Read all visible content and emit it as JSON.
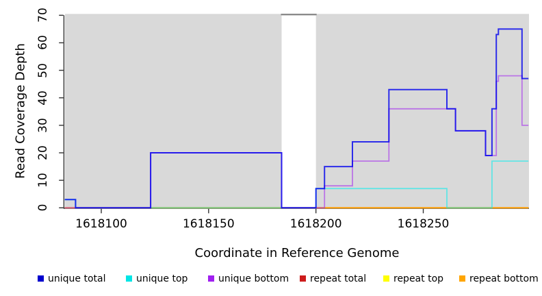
{
  "chart_data": {
    "type": "step-line",
    "title": "",
    "xlabel": "Coordinate in Reference Genome",
    "ylabel": "Read Coverage Depth",
    "x_range": [
      1618083,
      1618299
    ],
    "y_range": [
      0,
      70
    ],
    "x_ticks": [
      {
        "coord": 1618100,
        "label": "1618100"
      },
      {
        "coord": 1618150,
        "label": "1618150"
      },
      {
        "coord": 1618200,
        "label": "1618200"
      },
      {
        "coord": 1618250,
        "label": "1618250"
      }
    ],
    "y_ticks": [
      {
        "value": 0,
        "label": "0"
      },
      {
        "value": 10,
        "label": "10"
      },
      {
        "value": 20,
        "label": "20"
      },
      {
        "value": 30,
        "label": "30"
      },
      {
        "value": 40,
        "label": "40"
      },
      {
        "value": 50,
        "label": "50"
      },
      {
        "value": 60,
        "label": "60"
      },
      {
        "value": 70,
        "label": "70"
      }
    ],
    "plot_bg": "#d9d9d9",
    "axis_color": "#333333",
    "masked_region": {
      "start": 1618184,
      "end": 1618200,
      "fill": "#ffffff",
      "border_top": "#8a8a8a"
    },
    "grid": false,
    "legend_position": "bottom",
    "series": [
      {
        "name": "repeat total",
        "color": "#e00000",
        "opacity": 0.75,
        "width": 1.6,
        "steps": [
          [
            1618083,
            0
          ]
        ]
      },
      {
        "name": "repeat top",
        "color": "#ffff00",
        "opacity": 0.8,
        "width": 1.6,
        "steps": [
          [
            1618083,
            0
          ]
        ]
      },
      {
        "name": "repeat bottom",
        "color": "#ff9800",
        "opacity": 0.9,
        "width": 2,
        "steps": [
          [
            1618083,
            0
          ]
        ]
      },
      {
        "name": "unique top",
        "color": "#00eeee",
        "opacity": 0.55,
        "width": 1.8,
        "steps": [
          [
            1618083,
            3
          ],
          [
            1618088,
            0
          ],
          [
            1618200,
            7
          ],
          [
            1618261,
            0
          ],
          [
            1618282,
            17
          ]
        ]
      },
      {
        "name": "unique bottom",
        "color": "#a020f0",
        "opacity": 0.55,
        "width": 1.8,
        "steps": [
          [
            1618083,
            0
          ],
          [
            1618123,
            20
          ],
          [
            1618184,
            0
          ],
          [
            1618204,
            8
          ],
          [
            1618217,
            17
          ],
          [
            1618234,
            36
          ],
          [
            1618265,
            28
          ],
          [
            1618279,
            19
          ],
          [
            1618284,
            46
          ],
          [
            1618285,
            48
          ],
          [
            1618296,
            30
          ]
        ]
      },
      {
        "name": "unique total",
        "color": "#0000ee",
        "opacity": 0.8,
        "width": 2,
        "steps": [
          [
            1618083,
            3
          ],
          [
            1618088,
            0
          ],
          [
            1618123,
            20
          ],
          [
            1618184,
            0
          ],
          [
            1618200,
            7
          ],
          [
            1618204,
            15
          ],
          [
            1618217,
            24
          ],
          [
            1618234,
            43
          ],
          [
            1618261,
            36
          ],
          [
            1618265,
            28
          ],
          [
            1618279,
            19
          ],
          [
            1618282,
            36
          ],
          [
            1618284,
            63
          ],
          [
            1618285,
            65
          ],
          [
            1618296,
            47
          ]
        ]
      }
    ],
    "legend": [
      {
        "label": "unique total",
        "color": "#0000cd"
      },
      {
        "label": "unique top",
        "color": "#00e5e5"
      },
      {
        "label": "unique bottom",
        "color": "#a020f0"
      },
      {
        "label": "repeat total",
        "color": "#cd1c1c"
      },
      {
        "label": "repeat top",
        "color": "#ffff00"
      },
      {
        "label": "repeat bottom",
        "color": "#ffa500"
      }
    ]
  }
}
